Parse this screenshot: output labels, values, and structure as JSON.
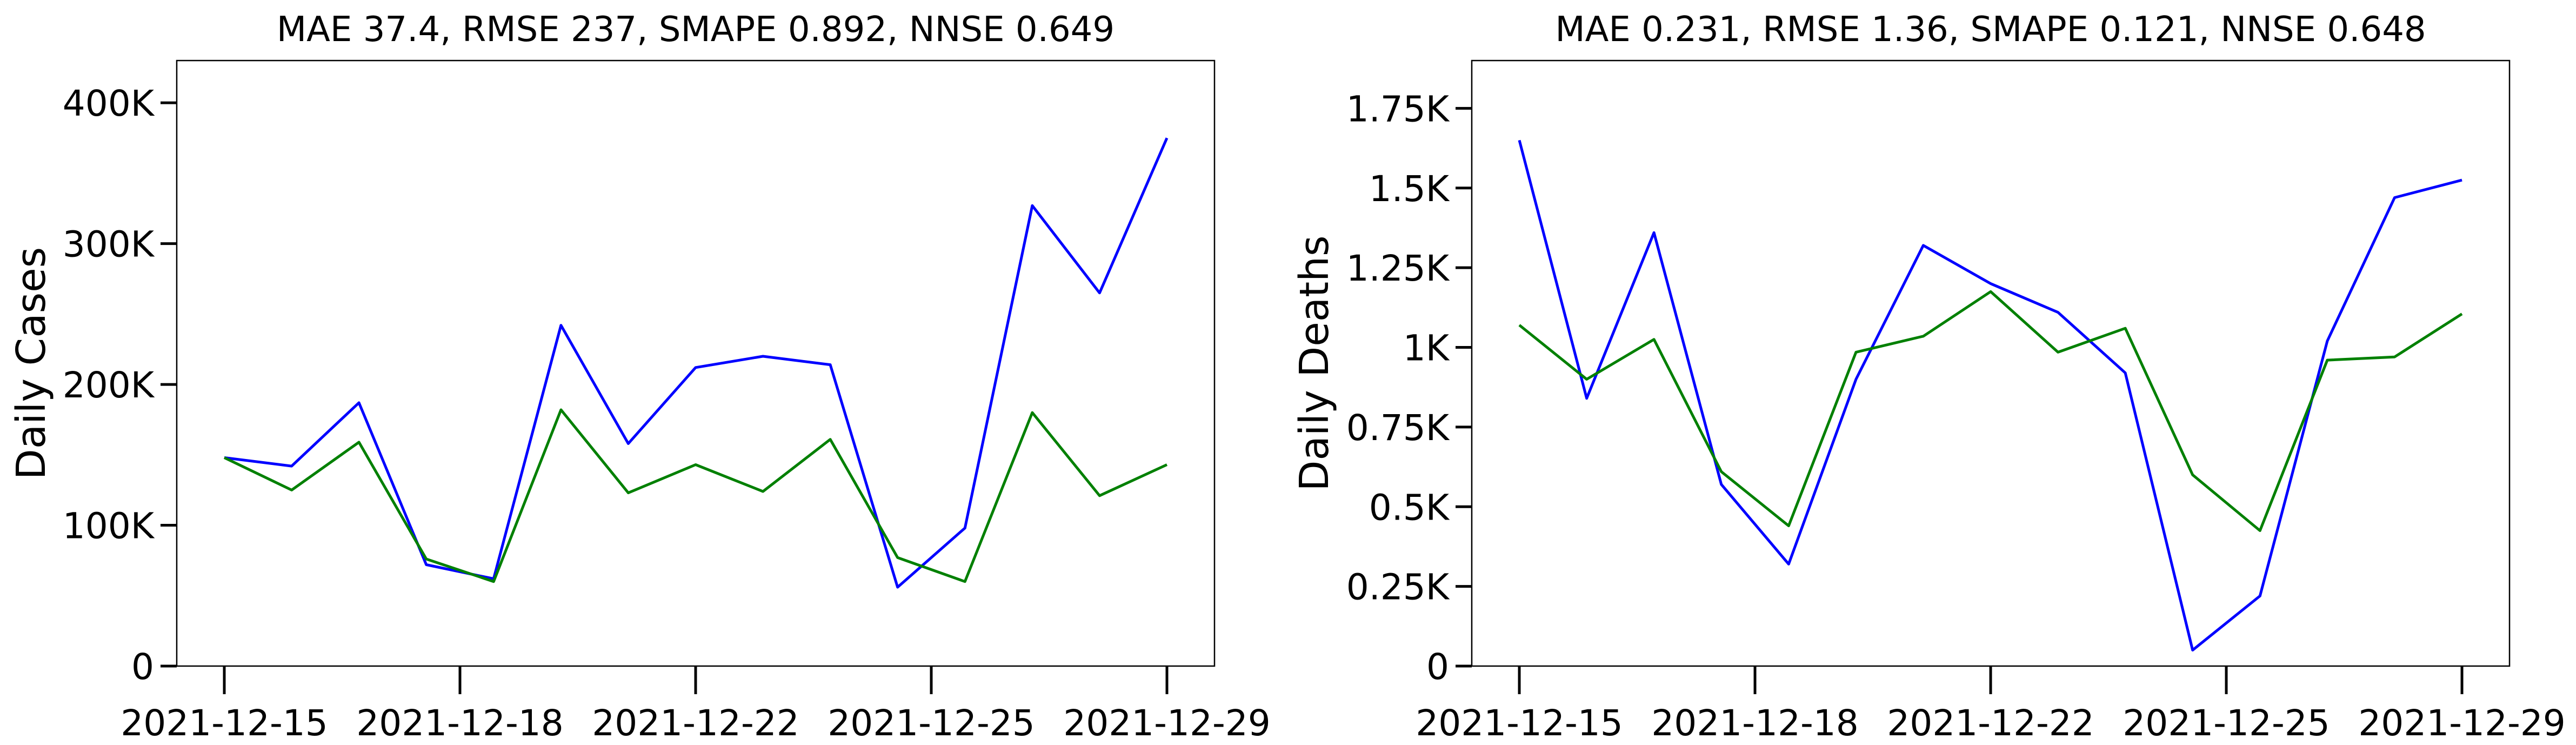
{
  "chart_data": [
    {
      "type": "line",
      "title": "MAE 37.4, RMSE 237, SMAPE 0.892, NNSE 0.649",
      "xlabel": "",
      "ylabel": "Daily Cases",
      "x": [
        "2021-12-15",
        "2021-12-16",
        "2021-12-17",
        "2021-12-18",
        "2021-12-19",
        "2021-12-20",
        "2021-12-21",
        "2021-12-22",
        "2021-12-23",
        "2021-12-24",
        "2021-12-25",
        "2021-12-26",
        "2021-12-27",
        "2021-12-28",
        "2021-12-29"
      ],
      "x_tick_labels": [
        "2021-12-15",
        "2021-12-18",
        "2021-12-22",
        "2021-12-25",
        "2021-12-29"
      ],
      "x_tick_index": [
        0,
        3.5,
        7,
        10.5,
        14
      ],
      "ylim": [
        0,
        430000
      ],
      "y_ticks": [
        0,
        100000,
        200000,
        300000,
        400000
      ],
      "y_tick_labels": [
        "0",
        "100K",
        "200K",
        "300K",
        "400K"
      ],
      "series": [
        {
          "color": "#0000ff",
          "values": [
            148000,
            142000,
            187000,
            72000,
            62000,
            242000,
            158000,
            212000,
            220000,
            214000,
            56000,
            98000,
            327000,
            265000,
            375000
          ]
        },
        {
          "color": "#008000",
          "values": [
            148000,
            125000,
            159000,
            76000,
            60000,
            182000,
            123000,
            143000,
            124000,
            161000,
            77000,
            60000,
            180000,
            121000,
            143000
          ]
        }
      ],
      "grid": false
    },
    {
      "type": "line",
      "title": "MAE 0.231, RMSE 1.36, SMAPE 0.121, NNSE 0.648",
      "xlabel": "",
      "ylabel": "Daily Deaths",
      "x": [
        "2021-12-15",
        "2021-12-16",
        "2021-12-17",
        "2021-12-18",
        "2021-12-19",
        "2021-12-20",
        "2021-12-21",
        "2021-12-22",
        "2021-12-23",
        "2021-12-24",
        "2021-12-25",
        "2021-12-26",
        "2021-12-27",
        "2021-12-28",
        "2021-12-29"
      ],
      "x_tick_labels": [
        "2021-12-15",
        "2021-12-18",
        "2021-12-22",
        "2021-12-25",
        "2021-12-29"
      ],
      "x_tick_index": [
        0,
        3.5,
        7,
        10.5,
        14
      ],
      "ylim": [
        0,
        1900
      ],
      "y_ticks": [
        0,
        250,
        500,
        750,
        1000,
        1250,
        1500,
        1750
      ],
      "y_tick_labels": [
        "0",
        "0.25K",
        "0.5K",
        "0.75K",
        "1K",
        "1.25K",
        "1.5K",
        "1.75K"
      ],
      "series": [
        {
          "color": "#0000ff",
          "values": [
            1650,
            840,
            1360,
            570,
            320,
            900,
            1320,
            1200,
            1110,
            920,
            50,
            220,
            1020,
            1470,
            1525
          ]
        },
        {
          "color": "#008000",
          "values": [
            1070,
            900,
            1025,
            610,
            440,
            985,
            1035,
            1175,
            985,
            1060,
            600,
            425,
            960,
            970,
            1105
          ]
        }
      ],
      "grid": false
    }
  ]
}
